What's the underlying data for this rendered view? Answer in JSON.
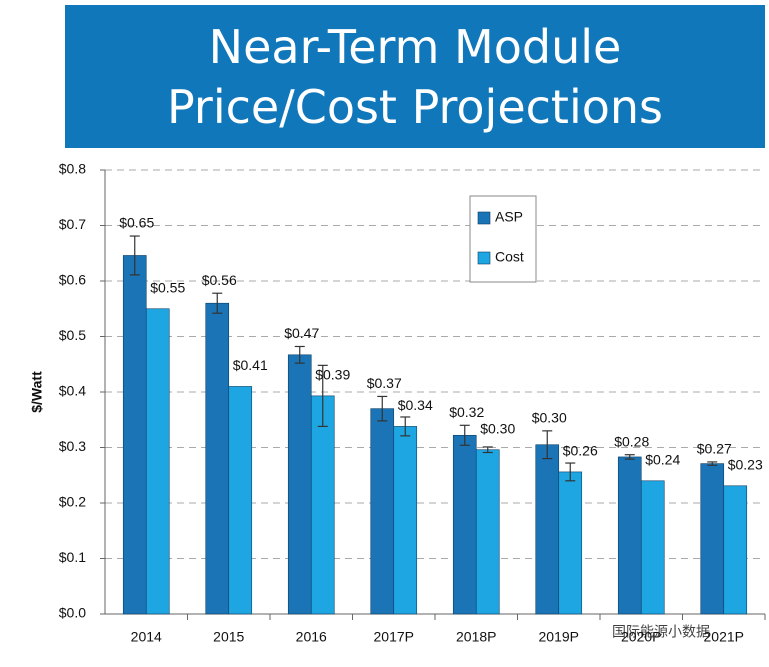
{
  "chart_data": {
    "type": "bar",
    "title": "Near-Term Module Price/Cost Projections",
    "ylabel": "$/Watt",
    "categories": [
      "2014",
      "2015",
      "2016",
      "2017P",
      "2018P",
      "2019P",
      "2020P",
      "2021P"
    ],
    "series": [
      {
        "name": "ASP",
        "color": "#1a74b6",
        "values": [
          0.646,
          0.56,
          0.467,
          0.37,
          0.322,
          0.305,
          0.283,
          0.271
        ],
        "value_labels": [
          "$0.65",
          "$0.56",
          "$0.47",
          "$0.37",
          "$0.32",
          "$0.30",
          "$0.28",
          "$0.27"
        ],
        "errors": [
          0.035,
          0.018,
          0.015,
          0.022,
          0.018,
          0.025,
          0.004,
          0.003
        ]
      },
      {
        "name": "Cost",
        "color": "#1ea6e2",
        "values": [
          0.55,
          0.41,
          0.393,
          0.338,
          0.296,
          0.256,
          0.24,
          0.231
        ],
        "value_labels": [
          "$0.55",
          "$0.41",
          "$0.39",
          "$0.34",
          "$0.30",
          "$0.26",
          "$0.24",
          "$0.23"
        ],
        "errors": [
          null,
          null,
          0.055,
          0.017,
          0.005,
          0.016,
          null,
          null
        ]
      }
    ],
    "ylim": [
      0,
      0.8
    ],
    "yticks": [
      {
        "value": 0,
        "label": "$0.0"
      },
      {
        "value": 0.1,
        "label": "$0.1"
      },
      {
        "value": 0.2,
        "label": "$0.2"
      },
      {
        "value": 0.3,
        "label": "$0.3"
      },
      {
        "value": 0.4,
        "label": "$0.4"
      },
      {
        "value": 0.5,
        "label": "$0.5"
      },
      {
        "value": 0.6,
        "label": "$0.6"
      },
      {
        "value": 0.7,
        "label": "$0.7"
      },
      {
        "value": 0.8,
        "label": "$0.8"
      }
    ],
    "grid": true,
    "legend": "upper-center",
    "watermark": "国际能源小数据"
  }
}
